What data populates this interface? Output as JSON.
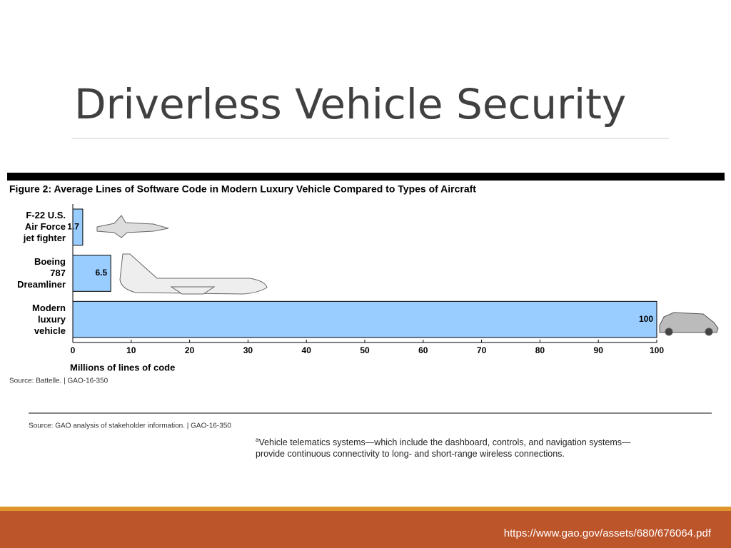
{
  "slide_title": "Driverless Vehicle Security",
  "chart_data": {
    "type": "hbar",
    "title": "Figure 2: Average Lines of Software Code in Modern Luxury Vehicle Compared to Types of Aircraft",
    "categories": [
      "F-22 U.S.\nAir Force\njet fighter",
      "Boeing\n787\nDreamliner",
      "Modern\nluxury\nvehicle"
    ],
    "values": [
      1.7,
      6.5,
      100
    ],
    "color": "#99ccff",
    "xlim": [
      0,
      100
    ],
    "xticks": [
      0,
      10,
      20,
      30,
      40,
      50,
      60,
      70,
      80,
      90,
      100
    ],
    "x_label": "Millions of lines of code",
    "source": "Source: Battelle. | GAO-16-350"
  },
  "notes": {
    "source": "Source: GAO analysis of stakeholder information. | GAO-16-350",
    "footnote_marker": "a",
    "footnote": "Vehicle telematics systems—which include the dashboard, controls, and navigation systems—\nprovide continuous connectivity to long- and short-range wireless connections."
  },
  "footer": "https://www.gao.gov/assets/680/676064.pdf"
}
